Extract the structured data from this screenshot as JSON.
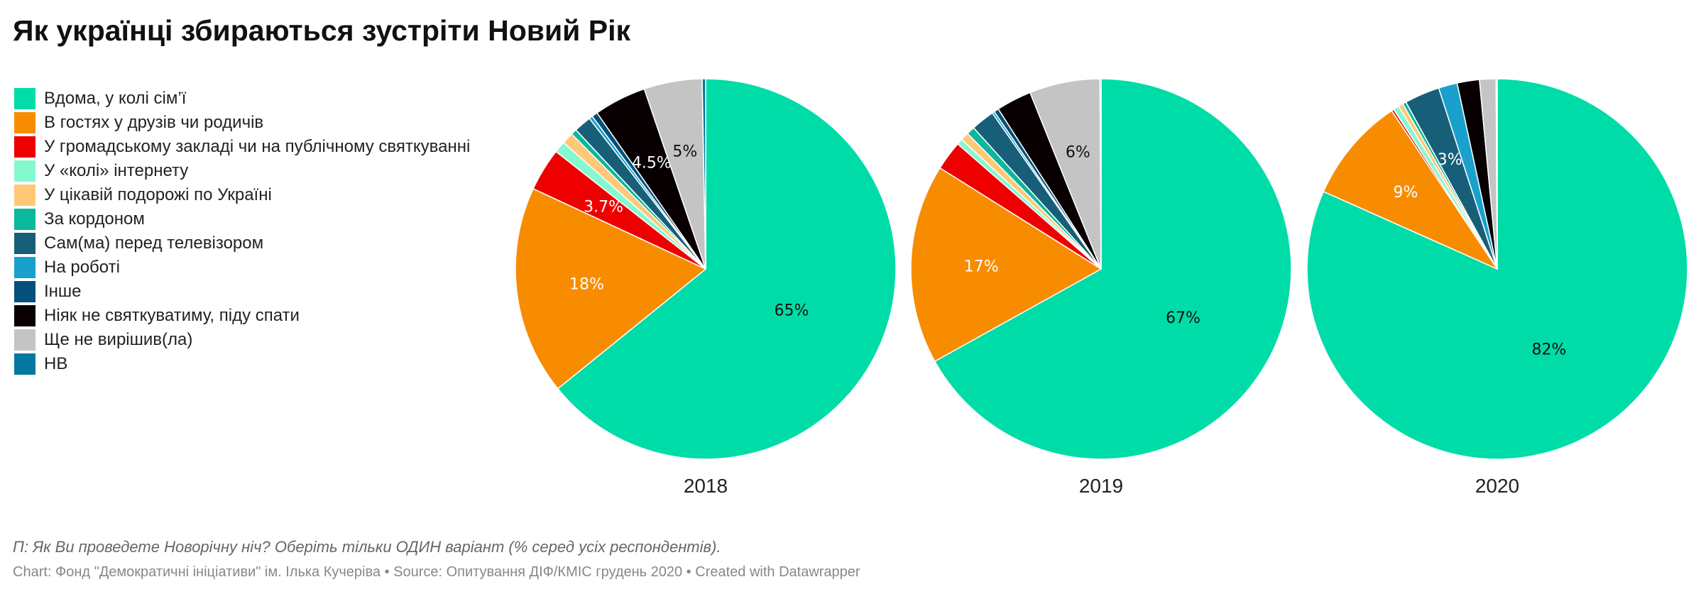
{
  "title": "Як українці збираються зустріти Новий Рік",
  "legend": [
    {
      "label": "Вдома, у колі сім’ї",
      "color": "#00dca8"
    },
    {
      "label": "В гостях у друзів чи родичів",
      "color": "#f88c00"
    },
    {
      "label": "У громадському закладі чи на публічному святкуванні",
      "color": "#ee0000"
    },
    {
      "label": "У «колі» інтернету",
      "color": "#86f8d0"
    },
    {
      "label": "У цікавій подорожі по Україні",
      "color": "#ffc878"
    },
    {
      "label": "За кордоном",
      "color": "#0ab89c"
    },
    {
      "label": "Сам(ма) перед телевізором",
      "color": "#175f78"
    },
    {
      "label": "На роботі",
      "color": "#1aa0cc"
    },
    {
      "label": "Інше",
      "color": "#04507a"
    },
    {
      "label": "Ніяк не святкуватиму, піду спати",
      "color": "#080000"
    },
    {
      "label": "Ще не вирішив(ла)",
      "color": "#c4c4c4"
    },
    {
      "label": "НВ",
      "color": "#0278a0"
    }
  ],
  "chart_data": [
    {
      "type": "pie",
      "title": "2018",
      "values": [
        65,
        18,
        3.7,
        1,
        1,
        0.5,
        1.5,
        0.3,
        0.5,
        4.5,
        5,
        0.3
      ],
      "labels": [
        "65%",
        "18%",
        "3.7%",
        "",
        "",
        "",
        "",
        "",
        "",
        "4.5%",
        "5%",
        ""
      ]
    },
    {
      "type": "pie",
      "title": "2019",
      "values": [
        67,
        17,
        2.5,
        0.5,
        0.7,
        0.7,
        2,
        0.2,
        0.4,
        3,
        6,
        0.1
      ],
      "labels": [
        "67%",
        "17%",
        "",
        "",
        "",
        "",
        "",
        "",
        "",
        "",
        "6%",
        ""
      ]
    },
    {
      "type": "pie",
      "title": "2020",
      "values": [
        82,
        9,
        0.2,
        0.5,
        0.4,
        0.3,
        3,
        1.6,
        0,
        1.9,
        1.4,
        0.1
      ],
      "labels": [
        "82%",
        "9%",
        "",
        "",
        "",
        "",
        "3%",
        "",
        "",
        "",
        "",
        ""
      ]
    }
  ],
  "footer": {
    "note": "П: Як Ви проведете Новорічну ніч? Оберіть тільки ОДИН варіант (% серед усіх респондентів).",
    "credit": "Chart: Фонд \"Демократичні ініціативи\" ім. Ілька Кучеріва • Source: Опитування ДІФ/КМІС грудень 2020 • Created with Datawrapper"
  }
}
